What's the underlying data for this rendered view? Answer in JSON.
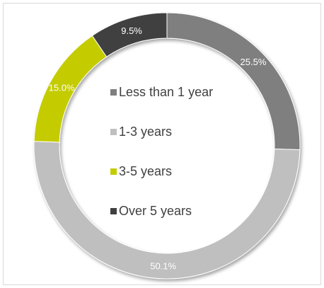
{
  "chart_data": {
    "type": "pie",
    "donut": true,
    "categories": [
      "Less than 1 year",
      "1-3 years",
      "3-5 years",
      "Over 5 years"
    ],
    "values": [
      25.5,
      50.1,
      15.0,
      9.5
    ],
    "value_labels": [
      "25.5%",
      "50.1%",
      "15.0%",
      "9.5%"
    ],
    "colors": [
      "#7f7f7f",
      "#bfbfbf",
      "#c4cc00",
      "#404040"
    ],
    "legend_position": "center"
  }
}
